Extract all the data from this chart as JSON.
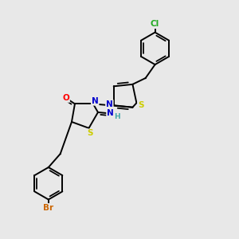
{
  "background_color": "#e8e8e8",
  "atom_colors": {
    "C": "#000000",
    "N": "#0000cd",
    "O": "#ff0000",
    "S": "#cccc00",
    "Br": "#cc6600",
    "Cl": "#22aa22",
    "H": "#44aaaa"
  },
  "bond_color": "#000000",
  "lw": 1.4,
  "r_benz": 0.68,
  "r_5ring": 0.6
}
